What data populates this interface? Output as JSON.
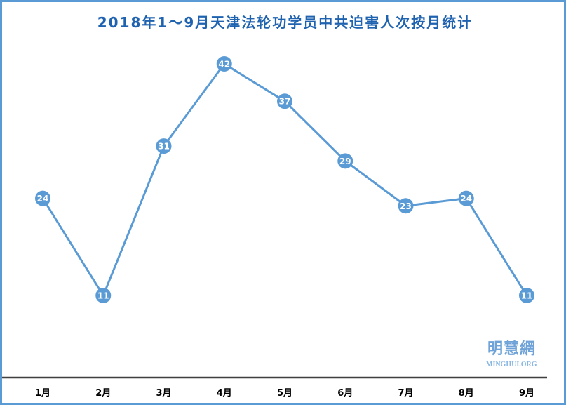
{
  "chart_data": {
    "type": "line",
    "title": "2018年1～9月天津法轮功学员中共迫害人次按月统计",
    "categories": [
      "1月",
      "2月",
      "3月",
      "4月",
      "5月",
      "6月",
      "7月",
      "8月",
      "9月"
    ],
    "values": [
      24,
      11,
      31,
      42,
      37,
      29,
      23,
      24,
      11
    ],
    "data_labels": true,
    "grid": false,
    "legend": "none",
    "line_color": "#5b9bd5",
    "title_color": "#1f63b0"
  },
  "watermark": {
    "text": "明慧網",
    "subtext": "MINGHUI.ORG"
  }
}
